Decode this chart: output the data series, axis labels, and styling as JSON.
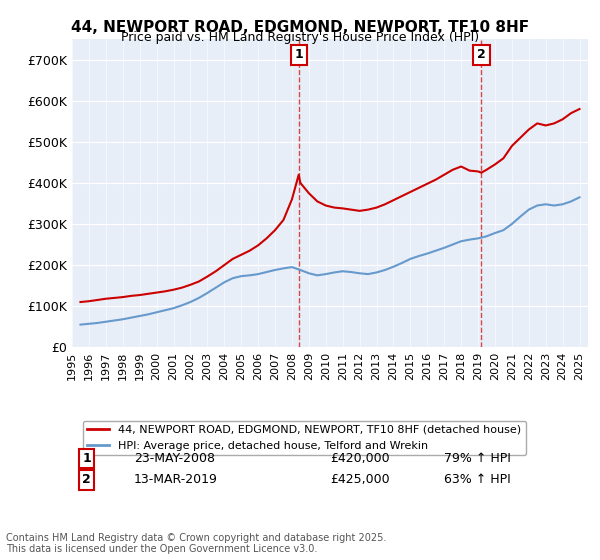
{
  "title": "44, NEWPORT ROAD, EDGMOND, NEWPORT, TF10 8HF",
  "subtitle": "Price paid vs. HM Land Registry's House Price Index (HPI)",
  "legend_line1": "44, NEWPORT ROAD, EDGMOND, NEWPORT, TF10 8HF (detached house)",
  "legend_line2": "HPI: Average price, detached house, Telford and Wrekin",
  "footer": "Contains HM Land Registry data © Crown copyright and database right 2025.\nThis data is licensed under the Open Government Licence v3.0.",
  "annotation1_label": "1",
  "annotation1_date": "23-MAY-2008",
  "annotation1_price": "£420,000",
  "annotation1_hpi": "79% ↑ HPI",
  "annotation2_label": "2",
  "annotation2_date": "13-MAR-2019",
  "annotation2_price": "£425,000",
  "annotation2_hpi": "63% ↑ HPI",
  "vline1_x": 2008.4,
  "vline2_x": 2019.2,
  "house_color": "#cc0000",
  "hpi_color": "#6699cc",
  "background_color": "#e8eef8",
  "ylim": [
    0,
    750000
  ],
  "xlim_start": 1995,
  "xlim_end": 2025.5,
  "yticks": [
    0,
    100000,
    200000,
    300000,
    400000,
    500000,
    600000,
    700000
  ],
  "ytick_labels": [
    "£0",
    "£100K",
    "£200K",
    "£300K",
    "£400K",
    "£500K",
    "£600K",
    "£700K"
  ],
  "house_x": [
    1995.5,
    1996.0,
    1996.5,
    1997.0,
    1997.5,
    1998.0,
    1998.5,
    1999.0,
    1999.5,
    2000.0,
    2000.5,
    2001.0,
    2001.5,
    2002.0,
    2002.5,
    2003.0,
    2003.5,
    2004.0,
    2004.5,
    2005.0,
    2005.5,
    2006.0,
    2006.5,
    2007.0,
    2007.5,
    2008.0,
    2008.4,
    2008.5,
    2009.0,
    2009.5,
    2010.0,
    2010.5,
    2011.0,
    2011.5,
    2012.0,
    2012.5,
    2013.0,
    2013.5,
    2014.0,
    2014.5,
    2015.0,
    2015.5,
    2016.0,
    2016.5,
    2017.0,
    2017.5,
    2018.0,
    2018.5,
    2019.0,
    2019.2,
    2019.5,
    2020.0,
    2020.5,
    2021.0,
    2021.5,
    2022.0,
    2022.5,
    2023.0,
    2023.5,
    2024.0,
    2024.5,
    2025.0
  ],
  "house_y": [
    110000,
    112000,
    115000,
    118000,
    120000,
    122000,
    125000,
    127000,
    130000,
    133000,
    136000,
    140000,
    145000,
    152000,
    160000,
    172000,
    185000,
    200000,
    215000,
    225000,
    235000,
    248000,
    265000,
    285000,
    310000,
    360000,
    420000,
    400000,
    375000,
    355000,
    345000,
    340000,
    338000,
    335000,
    332000,
    335000,
    340000,
    348000,
    358000,
    368000,
    378000,
    388000,
    398000,
    408000,
    420000,
    432000,
    440000,
    430000,
    428000,
    425000,
    432000,
    445000,
    460000,
    490000,
    510000,
    530000,
    545000,
    540000,
    545000,
    555000,
    570000,
    580000
  ],
  "hpi_x": [
    1995.5,
    1996.0,
    1996.5,
    1997.0,
    1997.5,
    1998.0,
    1998.5,
    1999.0,
    1999.5,
    2000.0,
    2000.5,
    2001.0,
    2001.5,
    2002.0,
    2002.5,
    2003.0,
    2003.5,
    2004.0,
    2004.5,
    2005.0,
    2005.5,
    2006.0,
    2006.5,
    2007.0,
    2007.5,
    2008.0,
    2008.5,
    2009.0,
    2009.5,
    2010.0,
    2010.5,
    2011.0,
    2011.5,
    2012.0,
    2012.5,
    2013.0,
    2013.5,
    2014.0,
    2014.5,
    2015.0,
    2015.5,
    2016.0,
    2016.5,
    2017.0,
    2017.5,
    2018.0,
    2018.5,
    2019.0,
    2019.5,
    2020.0,
    2020.5,
    2021.0,
    2021.5,
    2022.0,
    2022.5,
    2023.0,
    2023.5,
    2024.0,
    2024.5,
    2025.0
  ],
  "hpi_y": [
    55000,
    57000,
    59000,
    62000,
    65000,
    68000,
    72000,
    76000,
    80000,
    85000,
    90000,
    95000,
    102000,
    110000,
    120000,
    132000,
    145000,
    158000,
    168000,
    173000,
    175000,
    178000,
    183000,
    188000,
    192000,
    195000,
    188000,
    180000,
    175000,
    178000,
    182000,
    185000,
    183000,
    180000,
    178000,
    182000,
    188000,
    196000,
    205000,
    215000,
    222000,
    228000,
    235000,
    242000,
    250000,
    258000,
    262000,
    265000,
    270000,
    278000,
    285000,
    300000,
    318000,
    335000,
    345000,
    348000,
    345000,
    348000,
    355000,
    365000
  ]
}
